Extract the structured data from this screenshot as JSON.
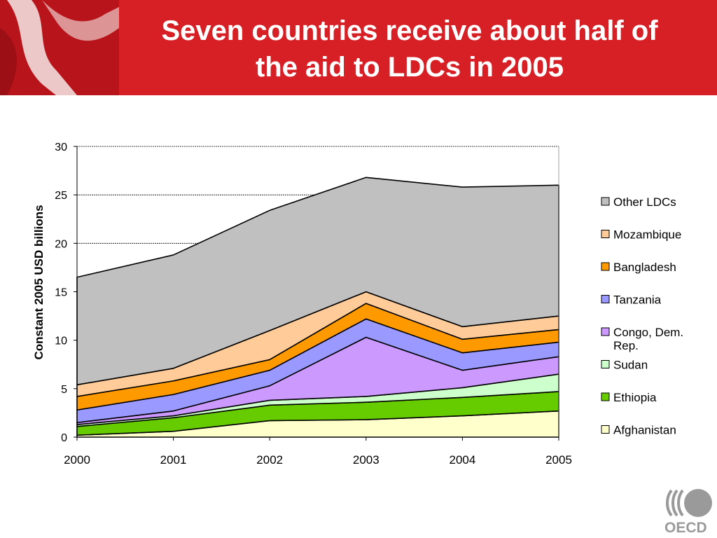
{
  "slide": {
    "title_line1": "Seven countries receive about half of",
    "title_line2": "the aid to LDCs in  2005",
    "logo_text": "OECD"
  },
  "colors": {
    "header_bg": "#d71f26"
  },
  "chart_data": {
    "type": "area",
    "stacked": true,
    "x": [
      "2000",
      "2001",
      "2002",
      "2003",
      "2004",
      "2005"
    ],
    "ylabel": "Constant 2005 USD billions",
    "xlabel": "",
    "ylim": [
      0,
      30
    ],
    "yticks": [
      "0",
      "5",
      "10",
      "15",
      "20",
      "25",
      "30"
    ],
    "grid": true,
    "legend_position": "right",
    "series": [
      {
        "name": "Afghanistan",
        "color": "#ffffcc",
        "values": [
          0.2,
          0.6,
          1.7,
          1.8,
          2.2,
          2.7
        ]
      },
      {
        "name": "Ethiopia",
        "color": "#66cc00",
        "values": [
          0.9,
          1.4,
          1.6,
          1.8,
          1.9,
          2.0
        ]
      },
      {
        "name": "Sudan",
        "color": "#ccffcc",
        "values": [
          0.2,
          0.2,
          0.5,
          0.6,
          1.0,
          1.8
        ]
      },
      {
        "name": "Congo, Dem. Rep.",
        "color": "#cc99ff",
        "values": [
          0.2,
          0.5,
          1.5,
          6.1,
          1.8,
          1.8
        ]
      },
      {
        "name": "Tanzania",
        "color": "#9999ff",
        "values": [
          1.3,
          1.7,
          1.6,
          1.9,
          1.8,
          1.5
        ]
      },
      {
        "name": "Bangladesh",
        "color": "#ff9900",
        "values": [
          1.4,
          1.4,
          1.1,
          1.6,
          1.4,
          1.3
        ]
      },
      {
        "name": "Mozambique",
        "color": "#ffcc99",
        "values": [
          1.2,
          1.3,
          3.0,
          1.2,
          1.3,
          1.4
        ]
      },
      {
        "name": "Other LDCs",
        "color": "#c0c0c0",
        "values": [
          11.1,
          11.7,
          12.4,
          11.8,
          14.4,
          13.5
        ]
      }
    ]
  }
}
